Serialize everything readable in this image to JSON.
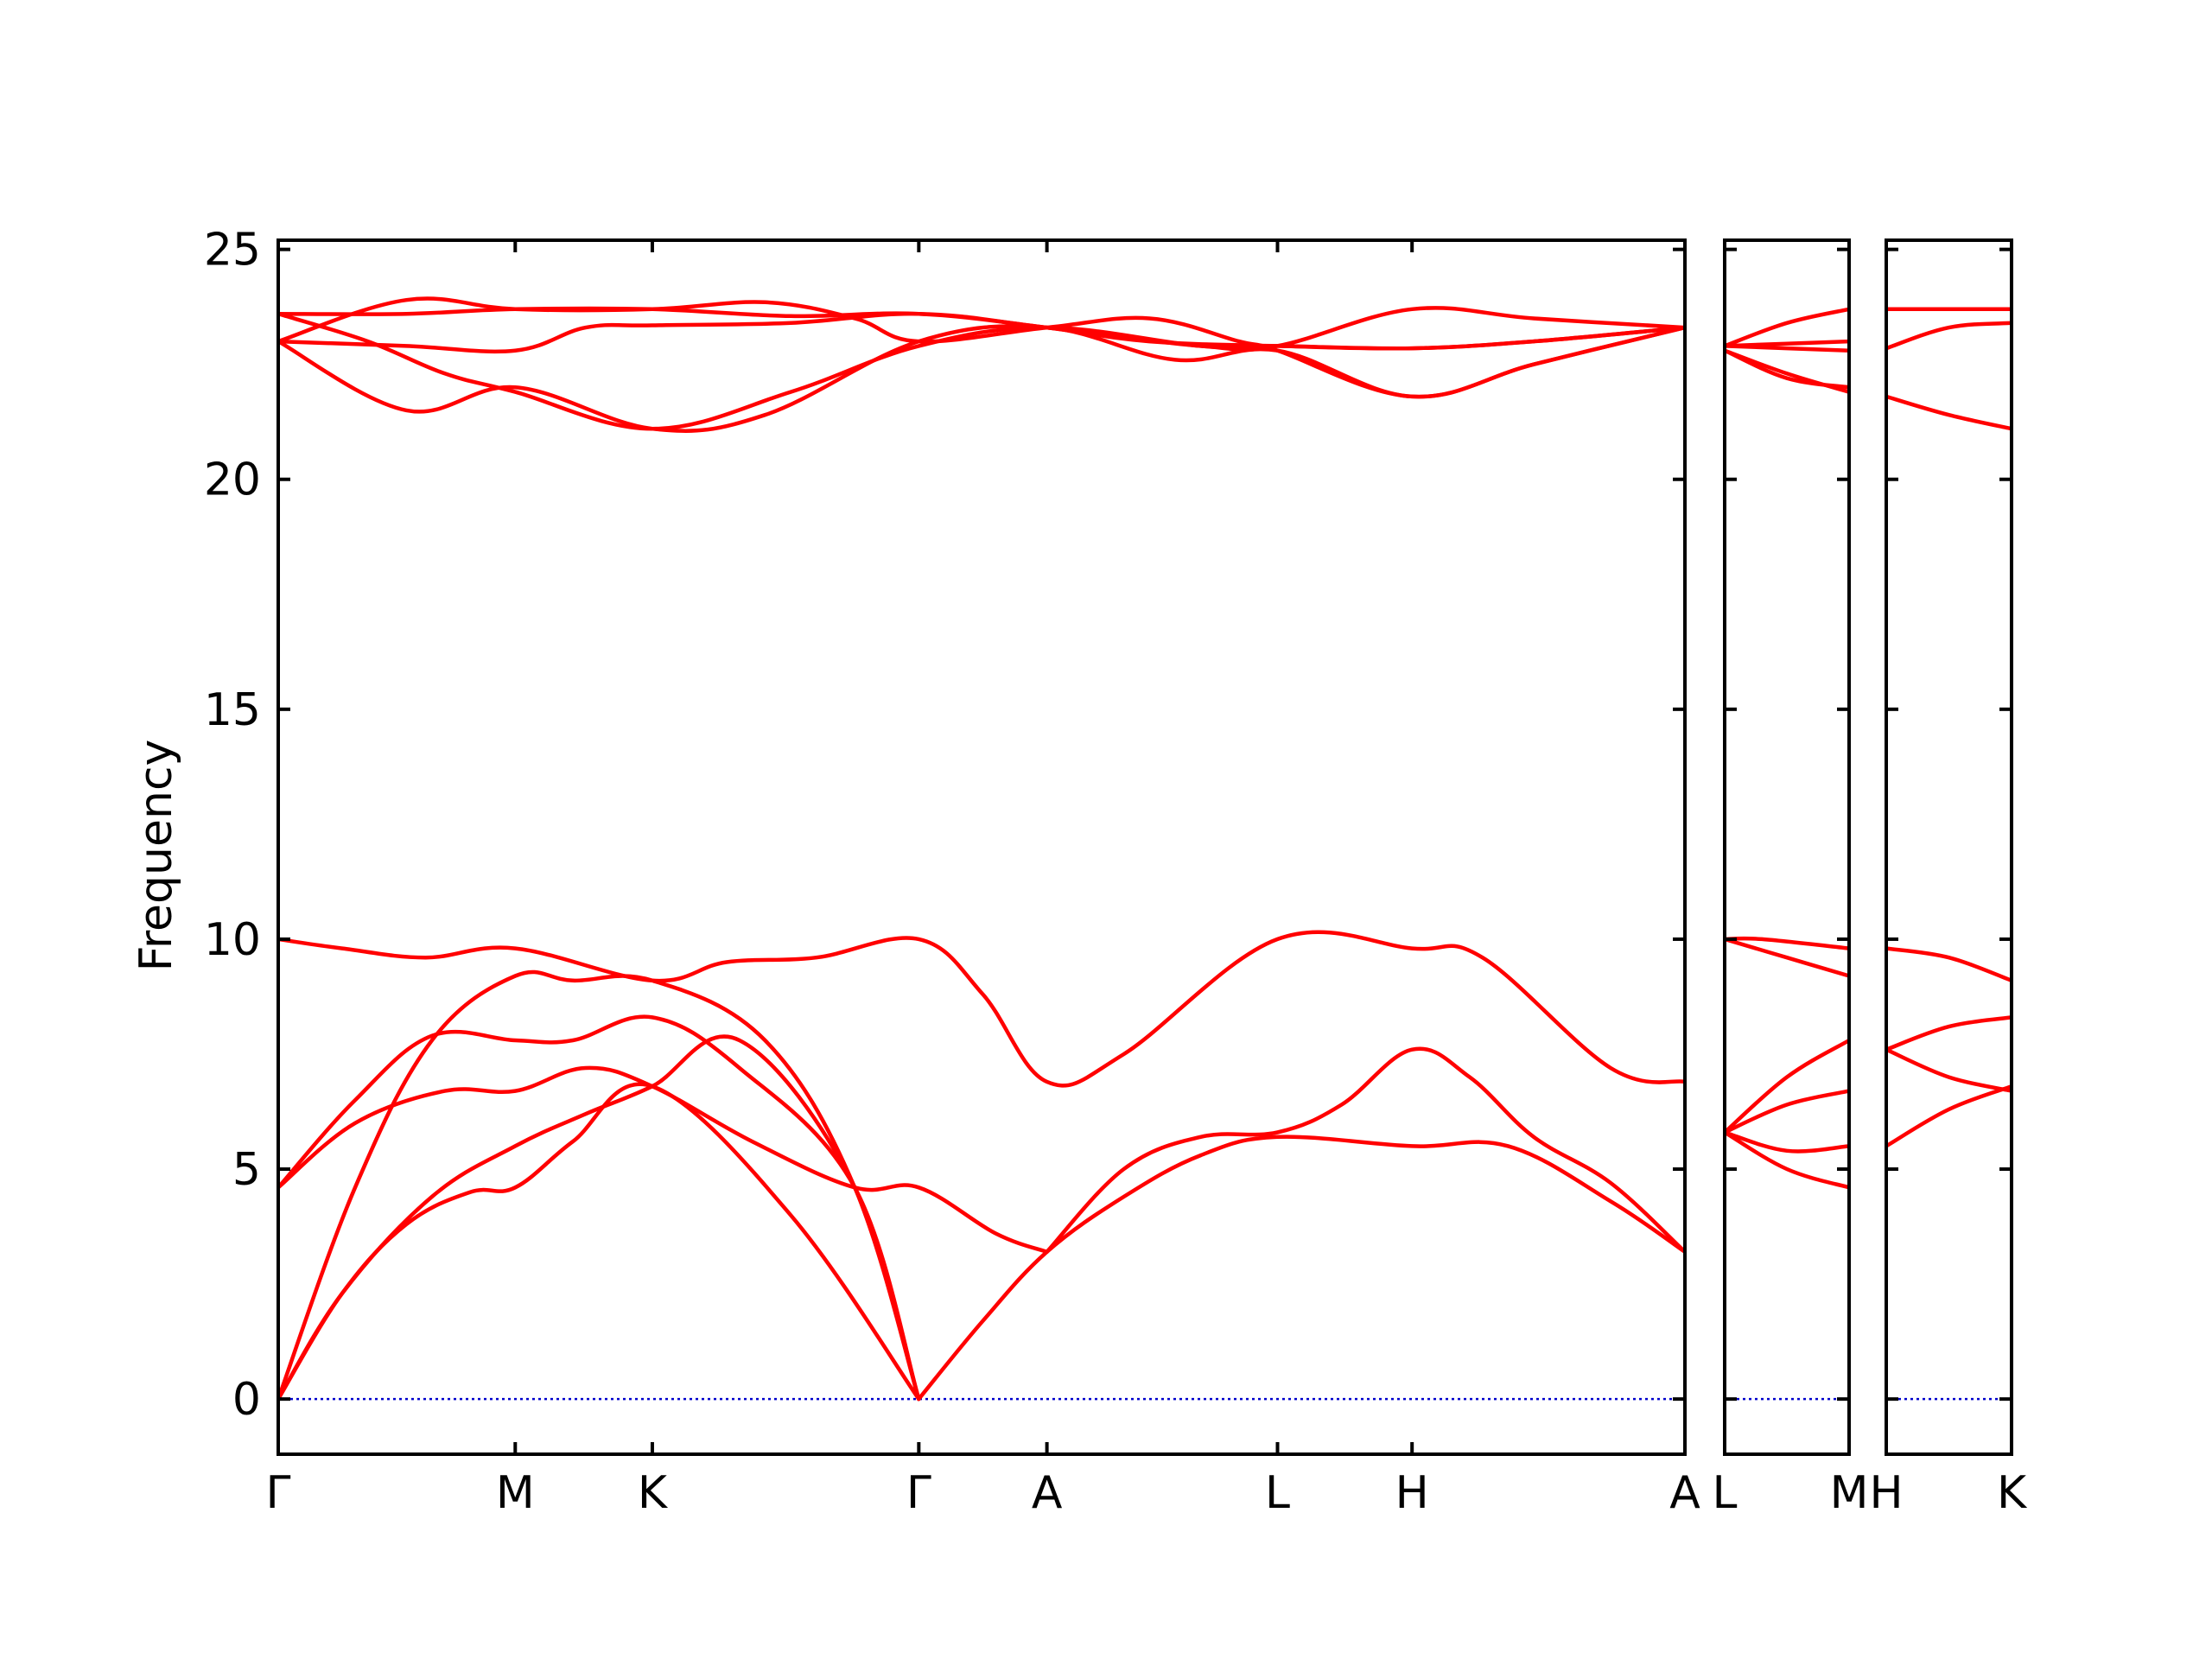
{
  "chart_data": {
    "type": "line",
    "title": "",
    "ylabel": "Frequency",
    "xlabel": "",
    "ylim": [
      -1.2,
      25.2
    ],
    "y_ticks": [
      0,
      5,
      10,
      15,
      20,
      25
    ],
    "colors": {
      "bands": "#ff0000",
      "zero_line": "#0000cc",
      "frame": "#000000"
    },
    "panels": [
      {
        "id": "p1",
        "xlim": [
          0,
          10.98
        ],
        "labels": [
          {
            "x": 0,
            "text": "Γ"
          },
          {
            "x": 1.85,
            "text": "M"
          },
          {
            "x": 2.92,
            "text": "K"
          },
          {
            "x": 5.0,
            "text": "Γ"
          },
          {
            "x": 6.0,
            "text": "A"
          },
          {
            "x": 7.8,
            "text": "L"
          },
          {
            "x": 8.85,
            "text": "H"
          },
          {
            "x": 10.98,
            "text": "A"
          }
        ],
        "series": [
          {
            "name": "",
            "points": [
              [
                0,
                0
              ],
              [
                0.6,
                4.6
              ],
              [
                1.2,
                7.8
              ],
              [
                1.85,
                9.2
              ],
              [
                2.3,
                9.1
              ],
              [
                2.92,
                9.1
              ],
              [
                3.8,
                7.8
              ],
              [
                4.5,
                4.6
              ],
              [
                5,
                0
              ]
            ]
          },
          {
            "name": "",
            "points": [
              [
                0,
                0
              ],
              [
                0.5,
                2.3
              ],
              [
                1.0,
                3.8
              ],
              [
                1.5,
                4.5
              ],
              [
                1.85,
                4.6
              ],
              [
                2.3,
                5.6
              ],
              [
                2.92,
                6.8
              ],
              [
                4.0,
                4.0
              ],
              [
                5,
                0
              ]
            ]
          },
          {
            "name": "",
            "points": [
              [
                0,
                0
              ],
              [
                0.5,
                2.3
              ],
              [
                1.2,
                4.4
              ],
              [
                1.85,
                5.5
              ],
              [
                2.4,
                6.2
              ],
              [
                2.92,
                6.8
              ],
              [
                3.6,
                7.8
              ],
              [
                4.5,
                4.6
              ],
              [
                5,
                0
              ]
            ]
          },
          {
            "name": "",
            "points": [
              [
                0,
                4.6
              ],
              [
                0.6,
                6.0
              ],
              [
                1.3,
                6.7
              ],
              [
                1.85,
                6.7
              ],
              [
                2.4,
                7.2
              ],
              [
                2.92,
                6.8
              ],
              [
                3.7,
                5.6
              ],
              [
                4.5,
                4.6
              ],
              [
                5,
                4.6
              ],
              [
                5.6,
                3.6
              ],
              [
                6,
                3.2
              ]
            ]
          },
          {
            "name": "",
            "points": [
              [
                0,
                4.6
              ],
              [
                0.6,
                6.5
              ],
              [
                1.2,
                7.9
              ],
              [
                1.85,
                7.8
              ],
              [
                2.3,
                7.8
              ],
              [
                2.92,
                8.3
              ],
              [
                3.6,
                7.2
              ],
              [
                4.5,
                4.6
              ],
              [
                5,
                0
              ]
            ]
          },
          {
            "name": "",
            "points": [
              [
                0,
                10.0
              ],
              [
                0.5,
                9.8
              ],
              [
                1.15,
                9.6
              ],
              [
                1.85,
                9.8
              ],
              [
                2.92,
                9.1
              ],
              [
                3.5,
                9.5
              ],
              [
                4.2,
                9.6
              ],
              [
                5,
                10.0
              ],
              [
                5.5,
                8.8
              ],
              [
                6,
                6.9
              ],
              [
                6.6,
                7.5
              ],
              [
                7.8,
                10.0
              ],
              [
                8.85,
                9.8
              ],
              [
                9.4,
                9.6
              ],
              [
                10.4,
                7.2
              ],
              [
                10.98,
                6.9
              ]
            ]
          },
          {
            "name": "",
            "points": [
              [
                5,
                0
              ],
              [
                5.5,
                1.7
              ],
              [
                6,
                3.2
              ],
              [
                6.6,
                4.4
              ],
              [
                7.2,
                5.3
              ],
              [
                7.8,
                5.7
              ],
              [
                8.85,
                5.5
              ],
              [
                9.6,
                5.5
              ],
              [
                10.4,
                4.3
              ],
              [
                10.98,
                3.2
              ]
            ]
          },
          {
            "name": "",
            "points": [
              [
                6,
                3.2
              ],
              [
                6.6,
                5.0
              ],
              [
                7.2,
                5.7
              ],
              [
                7.8,
                5.8
              ],
              [
                8.3,
                6.4
              ],
              [
                8.85,
                7.6
              ],
              [
                9.3,
                7.0
              ],
              [
                9.8,
                5.7
              ],
              [
                10.4,
                4.7
              ],
              [
                10.98,
                3.2
              ]
            ]
          },
          {
            "name": "",
            "points": [
              [
                0,
                23.6
              ],
              [
                1.0,
                23.6
              ],
              [
                1.85,
                23.7
              ],
              [
                2.92,
                23.7
              ],
              [
                4.0,
                23.55
              ],
              [
                5,
                23.6
              ],
              [
                6,
                23.3
              ],
              [
                6.8,
                23.0
              ],
              [
                7.8,
                22.9
              ],
              [
                8.85,
                22.85
              ],
              [
                9.8,
                23.0
              ],
              [
                10.98,
                23.3
              ]
            ]
          },
          {
            "name": "",
            "points": [
              [
                0,
                23.0
              ],
              [
                1.0,
                22.9
              ],
              [
                1.85,
                22.8
              ],
              [
                2.4,
                23.3
              ],
              [
                2.92,
                23.35
              ],
              [
                4.0,
                23.4
              ],
              [
                5,
                23.6
              ],
              [
                6,
                23.3
              ],
              [
                7.2,
                22.9
              ],
              [
                7.8,
                22.9
              ],
              [
                8.85,
                23.7
              ],
              [
                9.8,
                23.5
              ],
              [
                10.98,
                23.3
              ]
            ]
          },
          {
            "name": "",
            "points": [
              [
                0,
                23.0
              ],
              [
                1.0,
                23.9
              ],
              [
                1.85,
                23.7
              ],
              [
                2.92,
                23.7
              ],
              [
                3.8,
                23.85
              ],
              [
                4.5,
                23.5
              ],
              [
                5,
                23.0
              ],
              [
                6,
                23.3
              ],
              [
                6.8,
                23.5
              ],
              [
                7.5,
                23.0
              ],
              [
                7.8,
                22.8
              ],
              [
                8.85,
                21.8
              ],
              [
                9.8,
                22.5
              ],
              [
                10.98,
                23.3
              ]
            ]
          },
          {
            "name": "",
            "points": [
              [
                0,
                23.6
              ],
              [
                0.7,
                23.0
              ],
              [
                1.3,
                22.3
              ],
              [
                1.85,
                21.9
              ],
              [
                2.92,
                21.1
              ],
              [
                4.0,
                21.9
              ],
              [
                5,
                22.9
              ],
              [
                6,
                23.3
              ],
              [
                7.2,
                22.9
              ],
              [
                7.8,
                22.9
              ],
              [
                8.85,
                22.85
              ],
              [
                9.8,
                23.0
              ],
              [
                10.98,
                23.3
              ]
            ]
          },
          {
            "name": "",
            "points": [
              [
                0,
                23.0
              ],
              [
                1.0,
                21.5
              ],
              [
                1.85,
                22.0
              ],
              [
                2.92,
                21.1
              ],
              [
                3.8,
                21.4
              ],
              [
                5,
                23.0
              ],
              [
                6,
                23.3
              ],
              [
                7.0,
                22.6
              ],
              [
                7.8,
                22.8
              ],
              [
                8.85,
                21.8
              ],
              [
                9.8,
                22.5
              ],
              [
                10.98,
                23.3
              ]
            ]
          }
        ]
      },
      {
        "id": "p2",
        "xlim": [
          0,
          1
        ],
        "labels": [
          {
            "x": 0,
            "text": "L"
          },
          {
            "x": 1,
            "text": "M"
          }
        ],
        "series": [
          {
            "name": "",
            "points": [
              [
                0,
                10.0
              ],
              [
                0.3,
                10.0
              ],
              [
                1,
                9.8
              ]
            ]
          },
          {
            "name": "",
            "points": [
              [
                0,
                10.0
              ],
              [
                0.5,
                9.6
              ],
              [
                1,
                9.2
              ]
            ]
          },
          {
            "name": "",
            "points": [
              [
                0,
                5.8
              ],
              [
                0.5,
                7.0
              ],
              [
                1,
                7.8
              ]
            ]
          },
          {
            "name": "",
            "points": [
              [
                0,
                5.8
              ],
              [
                0.5,
                6.4
              ],
              [
                1,
                6.7
              ]
            ]
          },
          {
            "name": "",
            "points": [
              [
                0,
                5.8
              ],
              [
                0.5,
                5.4
              ],
              [
                1,
                5.5
              ]
            ]
          },
          {
            "name": "",
            "points": [
              [
                0,
                5.8
              ],
              [
                0.5,
                5.0
              ],
              [
                1,
                4.6
              ]
            ]
          },
          {
            "name": "",
            "points": [
              [
                0,
                22.9
              ],
              [
                0.5,
                23.4
              ],
              [
                1,
                23.7
              ]
            ]
          },
          {
            "name": "",
            "points": [
              [
                0,
                22.9
              ],
              [
                1,
                23.0
              ]
            ]
          },
          {
            "name": "",
            "points": [
              [
                0,
                22.9
              ],
              [
                1,
                22.8
              ]
            ]
          },
          {
            "name": "",
            "points": [
              [
                0,
                22.8
              ],
              [
                0.5,
                22.3
              ],
              [
                1,
                21.9
              ]
            ]
          },
          {
            "name": "",
            "points": [
              [
                0,
                22.8
              ],
              [
                0.5,
                22.2
              ],
              [
                1,
                22.0
              ]
            ]
          }
        ]
      },
      {
        "id": "p3",
        "xlim": [
          0,
          1
        ],
        "labels": [
          {
            "x": 0,
            "text": "H"
          },
          {
            "x": 1,
            "text": "K"
          }
        ],
        "series": [
          {
            "name": "",
            "points": [
              [
                0,
                9.8
              ],
              [
                0.5,
                9.6
              ],
              [
                1,
                9.1
              ]
            ]
          },
          {
            "name": "",
            "points": [
              [
                0,
                7.6
              ],
              [
                0.5,
                8.1
              ],
              [
                1,
                8.3
              ]
            ]
          },
          {
            "name": "",
            "points": [
              [
                0,
                7.6
              ],
              [
                0.5,
                7.0
              ],
              [
                1,
                6.7
              ]
            ]
          },
          {
            "name": "",
            "points": [
              [
                0,
                5.5
              ],
              [
                0.5,
                6.3
              ],
              [
                1,
                6.8
              ]
            ]
          },
          {
            "name": "",
            "points": [
              [
                0,
                23.7
              ],
              [
                1,
                23.7
              ]
            ]
          },
          {
            "name": "",
            "points": [
              [
                0,
                22.85
              ],
              [
                0.5,
                23.3
              ],
              [
                1,
                23.4
              ]
            ]
          },
          {
            "name": "",
            "points": [
              [
                0,
                21.8
              ],
              [
                0.5,
                21.4
              ],
              [
                1,
                21.1
              ]
            ]
          }
        ]
      }
    ]
  }
}
